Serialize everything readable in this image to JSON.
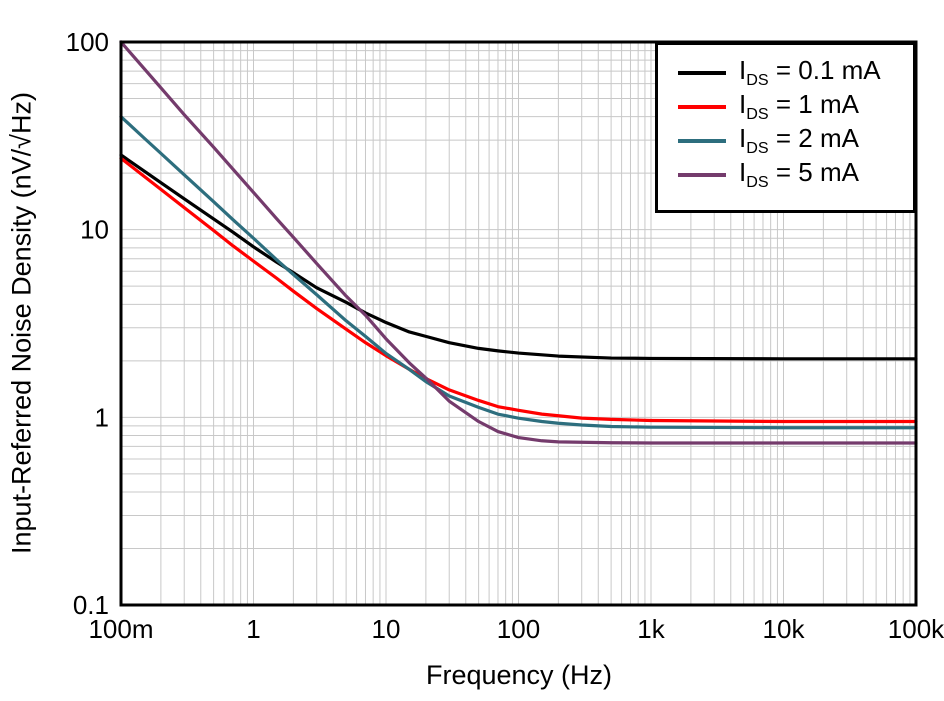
{
  "chart_data": {
    "type": "line",
    "title": "",
    "xlabel": "Frequency (Hz)",
    "ylabel": "Input-Referred Noise Density (nV/√Hz)",
    "x_scale": "log",
    "y_scale": "log",
    "xlim": [
      0.1,
      100000
    ],
    "ylim": [
      0.1,
      100
    ],
    "grid": "log major and minor gridlines, light gray",
    "legend_position": "top-right",
    "colors": {
      "grid": "#c8c8c8",
      "border": "#000000",
      "background": "#ffffff"
    },
    "x_ticks": [
      {
        "value": 0.1,
        "label": "100m"
      },
      {
        "value": 1,
        "label": "1"
      },
      {
        "value": 10,
        "label": "10"
      },
      {
        "value": 100,
        "label": "100"
      },
      {
        "value": 1000,
        "label": "1k"
      },
      {
        "value": 10000,
        "label": "10k"
      },
      {
        "value": 100000,
        "label": "100k"
      }
    ],
    "y_ticks": [
      {
        "value": 0.1,
        "label": "0.1"
      },
      {
        "value": 1,
        "label": "1"
      },
      {
        "value": 10,
        "label": "10"
      },
      {
        "value": 100,
        "label": "100"
      }
    ],
    "series": [
      {
        "id": "ids-0p1ma",
        "name": "IDS = 0.1 mA",
        "color": "#000000",
        "flat_level_nv": 2.05,
        "points": [
          [
            0.1,
            25
          ],
          [
            0.15,
            20.5
          ],
          [
            0.2,
            17.8
          ],
          [
            0.3,
            14.6
          ],
          [
            0.5,
            11.4
          ],
          [
            0.7,
            9.7
          ],
          [
            1,
            8.1
          ],
          [
            1.5,
            6.7
          ],
          [
            2,
            5.9
          ],
          [
            3,
            4.9
          ],
          [
            5,
            4.1
          ],
          [
            7,
            3.6
          ],
          [
            10,
            3.2
          ],
          [
            15,
            2.85
          ],
          [
            20,
            2.7
          ],
          [
            30,
            2.5
          ],
          [
            50,
            2.33
          ],
          [
            70,
            2.26
          ],
          [
            100,
            2.2
          ],
          [
            200,
            2.12
          ],
          [
            500,
            2.07
          ],
          [
            1000,
            2.06
          ],
          [
            10000,
            2.05
          ],
          [
            100000,
            2.05
          ]
        ]
      },
      {
        "id": "ids-1ma",
        "name": "IDS = 1 mA",
        "color": "#ff0000",
        "flat_level_nv": 0.95,
        "points": [
          [
            0.1,
            24
          ],
          [
            0.15,
            19.2
          ],
          [
            0.2,
            16.4
          ],
          [
            0.3,
            13.1
          ],
          [
            0.5,
            9.9
          ],
          [
            0.7,
            8.2
          ],
          [
            1,
            6.8
          ],
          [
            1.5,
            5.5
          ],
          [
            2,
            4.7
          ],
          [
            3,
            3.8
          ],
          [
            5,
            2.95
          ],
          [
            7,
            2.5
          ],
          [
            10,
            2.13
          ],
          [
            15,
            1.8
          ],
          [
            20,
            1.61
          ],
          [
            30,
            1.4
          ],
          [
            50,
            1.23
          ],
          [
            70,
            1.14
          ],
          [
            100,
            1.09
          ],
          [
            150,
            1.04
          ],
          [
            200,
            1.02
          ],
          [
            300,
            0.99
          ],
          [
            500,
            0.975
          ],
          [
            1000,
            0.962
          ],
          [
            10000,
            0.95
          ],
          [
            100000,
            0.95
          ]
        ]
      },
      {
        "id": "ids-2ma",
        "name": "IDS = 2 mA",
        "color": "#2d6e7e",
        "flat_level_nv": 0.88,
        "points": [
          [
            0.1,
            40
          ],
          [
            0.15,
            30.7
          ],
          [
            0.2,
            25.5
          ],
          [
            0.3,
            19.6
          ],
          [
            0.5,
            14.1
          ],
          [
            0.7,
            11.3
          ],
          [
            1,
            9.0
          ],
          [
            1.5,
            6.9
          ],
          [
            2,
            5.77
          ],
          [
            3,
            4.5
          ],
          [
            5,
            3.27
          ],
          [
            7,
            2.7
          ],
          [
            10,
            2.19
          ],
          [
            15,
            1.8
          ],
          [
            20,
            1.55
          ],
          [
            30,
            1.3
          ],
          [
            50,
            1.13
          ],
          [
            70,
            1.04
          ],
          [
            100,
            0.99
          ],
          [
            150,
            0.95
          ],
          [
            200,
            0.93
          ],
          [
            300,
            0.91
          ],
          [
            500,
            0.894
          ],
          [
            1000,
            0.886
          ],
          [
            10000,
            0.88
          ],
          [
            100000,
            0.88
          ]
        ]
      },
      {
        "id": "ids-5ma",
        "name": "IDS = 5 mA",
        "color": "#743b6c",
        "flat_level_nv": 0.73,
        "points": [
          [
            0.1,
            100
          ],
          [
            0.15,
            72
          ],
          [
            0.2,
            57
          ],
          [
            0.3,
            41
          ],
          [
            0.5,
            27.5
          ],
          [
            0.7,
            21
          ],
          [
            1,
            15.8
          ],
          [
            1.5,
            11.4
          ],
          [
            2,
            9.1
          ],
          [
            3,
            6.6
          ],
          [
            5,
            4.43
          ],
          [
            7,
            3.5
          ],
          [
            10,
            2.62
          ],
          [
            15,
            1.95
          ],
          [
            20,
            1.62
          ],
          [
            30,
            1.22
          ],
          [
            50,
            0.95
          ],
          [
            70,
            0.84
          ],
          [
            100,
            0.78
          ],
          [
            150,
            0.75
          ],
          [
            200,
            0.74
          ],
          [
            500,
            0.732
          ],
          [
            1000,
            0.73
          ],
          [
            10000,
            0.73
          ],
          [
            100000,
            0.73
          ]
        ]
      }
    ]
  },
  "legend": {
    "entries": [
      {
        "symbol": "I",
        "subscript": "DS",
        "value": " = 0.1 mA"
      },
      {
        "symbol": "I",
        "subscript": "DS",
        "value": " = 1 mA"
      },
      {
        "symbol": "I",
        "subscript": "DS",
        "value": " = 2 mA"
      },
      {
        "symbol": "I",
        "subscript": "DS",
        "value": " = 5 mA"
      }
    ]
  }
}
